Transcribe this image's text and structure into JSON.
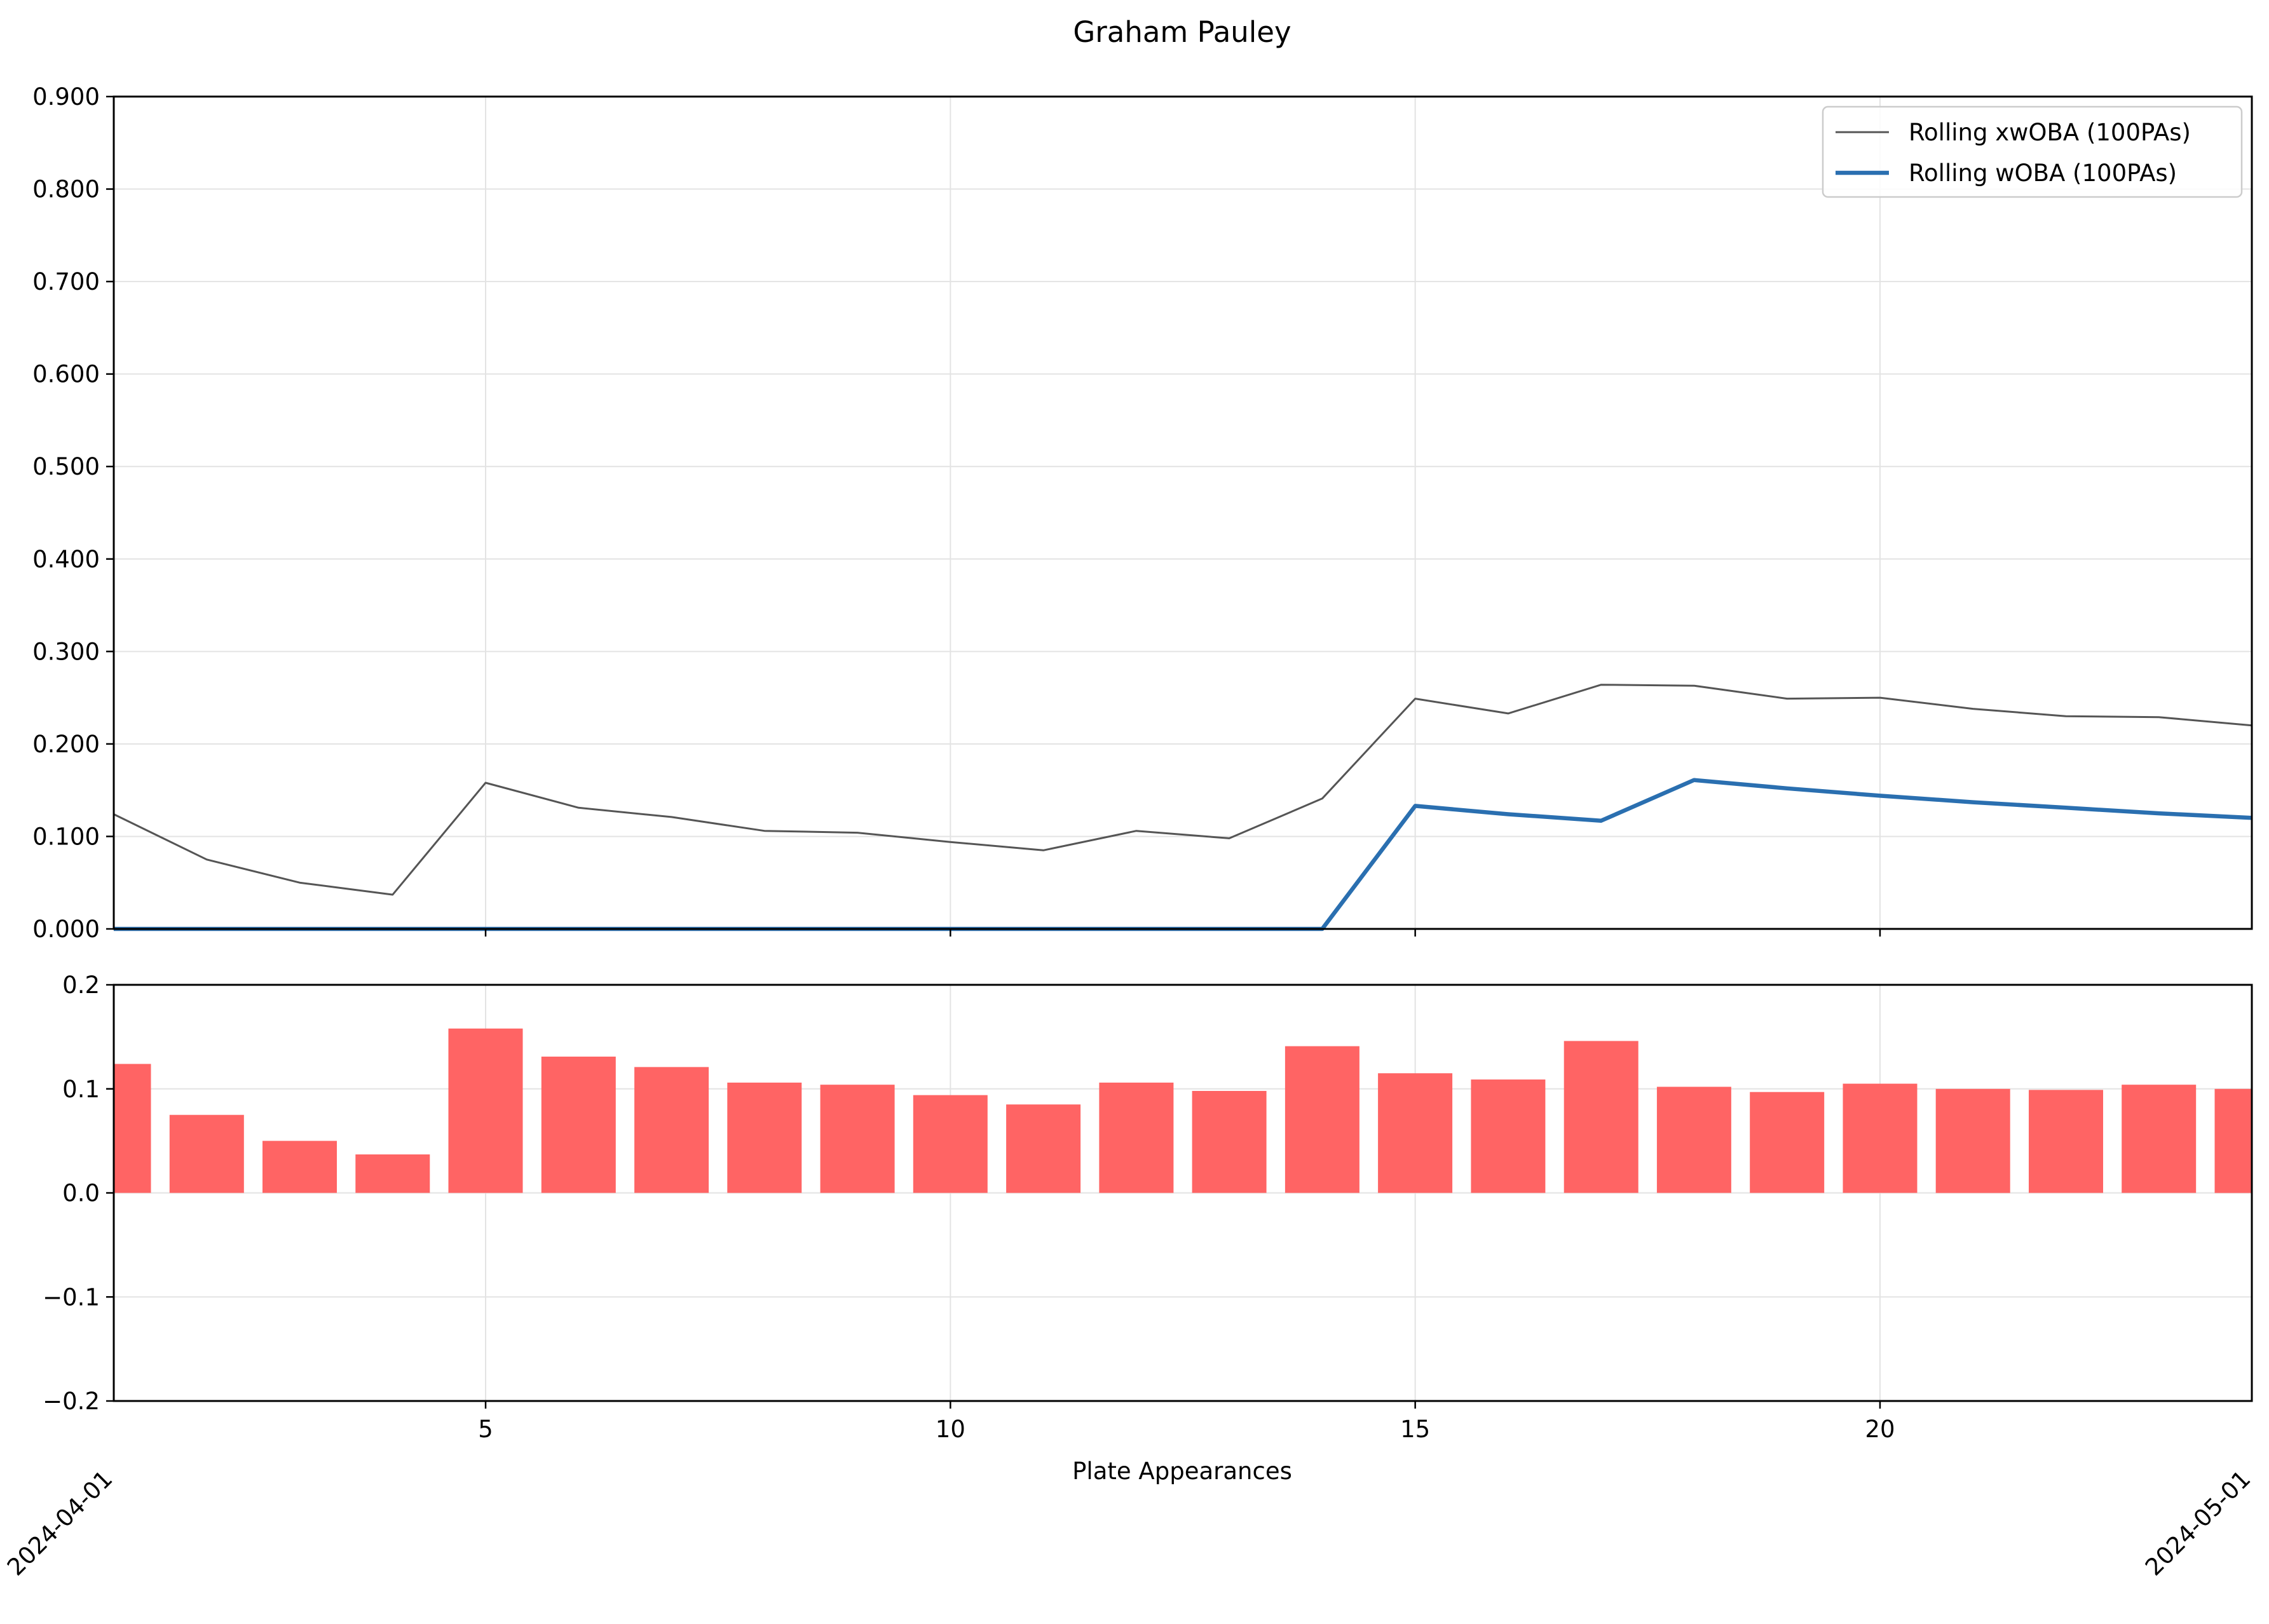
{
  "chart_data": [
    {
      "type": "line",
      "title": "Graham Pauley",
      "xlabel": "",
      "ylabel": "",
      "xlim": [
        1,
        24
      ],
      "ylim": [
        0.0,
        0.9
      ],
      "x_ticks": [
        5,
        10,
        15,
        20
      ],
      "y_ticks": [
        "0.000",
        "0.100",
        "0.200",
        "0.300",
        "0.400",
        "0.500",
        "0.600",
        "0.700",
        "0.800",
        "0.900"
      ],
      "grid": true,
      "legend": "top-right",
      "x": [
        1,
        2,
        3,
        4,
        5,
        6,
        7,
        8,
        9,
        10,
        11,
        12,
        13,
        14,
        15,
        16,
        17,
        18,
        19,
        20,
        21,
        22,
        23,
        24
      ],
      "series": [
        {
          "name": "Rolling xwOBA (100PAs)",
          "color": "#555555",
          "values": [
            0.124,
            0.075,
            0.05,
            0.037,
            0.158,
            0.131,
            0.121,
            0.106,
            0.104,
            0.094,
            0.085,
            0.106,
            0.098,
            0.141,
            0.249,
            0.233,
            0.264,
            0.263,
            0.249,
            0.25,
            0.238,
            0.23,
            0.229,
            0.22
          ]
        },
        {
          "name": "Rolling wOBA (100PAs)",
          "color": "#2a6fb0",
          "values": [
            0,
            0,
            0,
            0,
            0,
            0,
            0,
            0,
            0,
            0,
            0,
            0,
            0,
            0,
            0.133,
            0.124,
            0.117,
            0.161,
            0.152,
            0.144,
            0.137,
            0.131,
            0.125,
            0.12
          ]
        }
      ]
    },
    {
      "type": "bar",
      "xlabel": "Plate Appearances",
      "ylabel": "",
      "xlim": [
        1,
        24
      ],
      "ylim": [
        -0.2,
        0.2
      ],
      "x_ticks": [
        5,
        10,
        15,
        20
      ],
      "y_ticks": [
        "0.2",
        "0.1",
        "0.0",
        "−0.1",
        "−0.2"
      ],
      "y_tick_values": [
        0.2,
        0.1,
        0.0,
        -0.1,
        -0.2
      ],
      "grid": true,
      "date_labels": [
        "2024-04-01",
        "2024-05-01"
      ],
      "color": "#ff6464",
      "x": [
        1,
        2,
        3,
        4,
        5,
        6,
        7,
        8,
        9,
        10,
        11,
        12,
        13,
        14,
        15,
        16,
        17,
        18,
        19,
        20,
        21,
        22,
        23,
        24
      ],
      "values": [
        0.124,
        0.075,
        0.05,
        0.037,
        0.158,
        0.131,
        0.121,
        0.106,
        0.104,
        0.094,
        0.085,
        0.106,
        0.098,
        0.141,
        0.115,
        0.109,
        0.146,
        0.102,
        0.097,
        0.105,
        0.1,
        0.099,
        0.104,
        0.1
      ]
    }
  ]
}
